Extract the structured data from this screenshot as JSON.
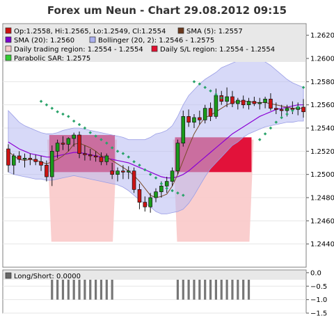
{
  "chart_data": [
    {
      "type": "candlestick",
      "title": "Forex um Neun - Chart 29.08.2012 09:15",
      "ylim": [
        1.242,
        1.263
      ],
      "yticks": [
        1.244,
        1.246,
        1.248,
        1.25,
        1.252,
        1.254,
        1.256,
        1.258,
        1.26,
        1.262
      ],
      "ytick_labels": [
        "1.2440",
        "1.2460",
        "1.2480",
        "1.2500",
        "1.2520",
        "1.2540",
        "1.2560",
        "1.2580",
        "1.2600",
        "1.2620"
      ],
      "grid": true,
      "legend": [
        {
          "label": "Op:1.2558, Hi:1.2565, Lo:1.2549, Cl:1.2554",
          "color": "#cc1010"
        },
        {
          "label": "SMA (5): 1.2557",
          "color": "#6b3a1e"
        },
        {
          "label": "SMA (20): 1.2560",
          "color": "#7a00cc"
        },
        {
          "label": "Bollinger (20, 2): 1.2546 - 1.2575",
          "color": "#aab0ee"
        },
        {
          "label": "Daily trading region: 1.2554 - 1.2554",
          "color": "#f6c8c8"
        },
        {
          "label": "Daily S/L region: 1.2554 - 1.2554",
          "color": "#e01030"
        },
        {
          "label": "Parabolic SAR: 1.2575",
          "color": "#33cc33"
        }
      ],
      "candles": [
        {
          "o": 1.2522,
          "h": 1.2526,
          "l": 1.2502,
          "c": 1.2508
        },
        {
          "o": 1.2508,
          "h": 1.2518,
          "l": 1.25,
          "c": 1.2516
        },
        {
          "o": 1.2516,
          "h": 1.252,
          "l": 1.251,
          "c": 1.2513
        },
        {
          "o": 1.2513,
          "h": 1.2518,
          "l": 1.2506,
          "c": 1.2514
        },
        {
          "o": 1.2514,
          "h": 1.2518,
          "l": 1.2508,
          "c": 1.2513
        },
        {
          "o": 1.2513,
          "h": 1.2517,
          "l": 1.2508,
          "c": 1.2511
        },
        {
          "o": 1.2511,
          "h": 1.2516,
          "l": 1.2503,
          "c": 1.2508
        },
        {
          "o": 1.2508,
          "h": 1.2512,
          "l": 1.2494,
          "c": 1.2498
        },
        {
          "o": 1.2498,
          "h": 1.2525,
          "l": 1.249,
          "c": 1.252
        },
        {
          "o": 1.252,
          "h": 1.253,
          "l": 1.2514,
          "c": 1.2527
        },
        {
          "o": 1.2527,
          "h": 1.2533,
          "l": 1.2521,
          "c": 1.2526
        },
        {
          "o": 1.2526,
          "h": 1.2532,
          "l": 1.252,
          "c": 1.2531
        },
        {
          "o": 1.2531,
          "h": 1.2536,
          "l": 1.2524,
          "c": 1.2534
        },
        {
          "o": 1.2534,
          "h": 1.2537,
          "l": 1.2514,
          "c": 1.2518
        },
        {
          "o": 1.2518,
          "h": 1.2525,
          "l": 1.2512,
          "c": 1.2517
        },
        {
          "o": 1.2517,
          "h": 1.2522,
          "l": 1.2512,
          "c": 1.2516
        },
        {
          "o": 1.2516,
          "h": 1.252,
          "l": 1.2511,
          "c": 1.2515
        },
        {
          "o": 1.2515,
          "h": 1.2519,
          "l": 1.2508,
          "c": 1.2511
        },
        {
          "o": 1.2511,
          "h": 1.2518,
          "l": 1.2508,
          "c": 1.2516
        },
        {
          "o": 1.2503,
          "h": 1.251,
          "l": 1.2496,
          "c": 1.25
        },
        {
          "o": 1.25,
          "h": 1.2506,
          "l": 1.2494,
          "c": 1.2503
        },
        {
          "o": 1.2503,
          "h": 1.2508,
          "l": 1.2496,
          "c": 1.2502
        },
        {
          "o": 1.2502,
          "h": 1.2507,
          "l": 1.2496,
          "c": 1.2503
        },
        {
          "o": 1.2503,
          "h": 1.2506,
          "l": 1.2484,
          "c": 1.2487
        },
        {
          "o": 1.2487,
          "h": 1.2492,
          "l": 1.247,
          "c": 1.2476
        },
        {
          "o": 1.2476,
          "h": 1.2481,
          "l": 1.2468,
          "c": 1.2472
        },
        {
          "o": 1.2472,
          "h": 1.2484,
          "l": 1.2467,
          "c": 1.248
        },
        {
          "o": 1.248,
          "h": 1.2488,
          "l": 1.2476,
          "c": 1.2485
        },
        {
          "o": 1.2485,
          "h": 1.2494,
          "l": 1.248,
          "c": 1.249
        },
        {
          "o": 1.249,
          "h": 1.2498,
          "l": 1.2484,
          "c": 1.2494
        },
        {
          "o": 1.2494,
          "h": 1.2506,
          "l": 1.249,
          "c": 1.2503
        },
        {
          "o": 1.2503,
          "h": 1.253,
          "l": 1.25,
          "c": 1.2527
        },
        {
          "o": 1.2527,
          "h": 1.2555,
          "l": 1.2524,
          "c": 1.255
        },
        {
          "o": 1.255,
          "h": 1.2556,
          "l": 1.2541,
          "c": 1.2545
        },
        {
          "o": 1.2545,
          "h": 1.2552,
          "l": 1.254,
          "c": 1.2549
        },
        {
          "o": 1.2549,
          "h": 1.2555,
          "l": 1.2543,
          "c": 1.2547
        },
        {
          "o": 1.2547,
          "h": 1.256,
          "l": 1.2544,
          "c": 1.2557
        },
        {
          "o": 1.2557,
          "h": 1.2562,
          "l": 1.2546,
          "c": 1.255
        },
        {
          "o": 1.255,
          "h": 1.2574,
          "l": 1.2548,
          "c": 1.2568
        },
        {
          "o": 1.2568,
          "h": 1.2572,
          "l": 1.256,
          "c": 1.2563
        },
        {
          "o": 1.2563,
          "h": 1.2575,
          "l": 1.2558,
          "c": 1.2567
        },
        {
          "o": 1.2567,
          "h": 1.2572,
          "l": 1.2558,
          "c": 1.2561
        },
        {
          "o": 1.2561,
          "h": 1.2566,
          "l": 1.2556,
          "c": 1.2564
        },
        {
          "o": 1.2564,
          "h": 1.2568,
          "l": 1.2557,
          "c": 1.256
        },
        {
          "o": 1.256,
          "h": 1.2566,
          "l": 1.2556,
          "c": 1.2563
        },
        {
          "o": 1.2563,
          "h": 1.2567,
          "l": 1.2559,
          "c": 1.2561
        },
        {
          "o": 1.2561,
          "h": 1.2566,
          "l": 1.2556,
          "c": 1.2562
        },
        {
          "o": 1.2562,
          "h": 1.2567,
          "l": 1.2557,
          "c": 1.2565
        },
        {
          "o": 1.2565,
          "h": 1.257,
          "l": 1.2555,
          "c": 1.2557
        },
        {
          "o": 1.2557,
          "h": 1.2562,
          "l": 1.2552,
          "c": 1.2556
        },
        {
          "o": 1.2556,
          "h": 1.256,
          "l": 1.255,
          "c": 1.2555
        },
        {
          "o": 1.2555,
          "h": 1.256,
          "l": 1.255,
          "c": 1.2557
        },
        {
          "o": 1.2557,
          "h": 1.2563,
          "l": 1.2552,
          "c": 1.2556
        },
        {
          "o": 1.2556,
          "h": 1.2562,
          "l": 1.2551,
          "c": 1.2558
        },
        {
          "o": 1.2558,
          "h": 1.2565,
          "l": 1.2549,
          "c": 1.2554
        }
      ],
      "sma5": [
        1.252,
        1.2516,
        1.2513,
        1.2512,
        1.2513,
        1.2512,
        1.2511,
        1.2509,
        1.2511,
        1.2513,
        1.2516,
        1.252,
        1.2526,
        1.2527,
        1.2525,
        1.2523,
        1.252,
        1.2516,
        1.2515,
        1.2512,
        1.2509,
        1.2506,
        1.2503,
        1.2499,
        1.2494,
        1.2488,
        1.2482,
        1.248,
        1.2481,
        1.2483,
        1.249,
        1.25,
        1.2512,
        1.2524,
        1.2535,
        1.2543,
        1.2549,
        1.2551,
        1.2554,
        1.2557,
        1.256,
        1.2562,
        1.2563,
        1.2563,
        1.2563,
        1.2562,
        1.2562,
        1.2562,
        1.2561,
        1.256,
        1.2559,
        1.2558,
        1.2557,
        1.2557,
        1.2557
      ],
      "sma20": [
        1.2528,
        1.2525,
        1.2522,
        1.252,
        1.2518,
        1.2517,
        1.2516,
        1.2515,
        1.2515,
        1.2516,
        1.2517,
        1.2518,
        1.2519,
        1.2519,
        1.2518,
        1.2517,
        1.2516,
        1.2515,
        1.2514,
        1.2513,
        1.2512,
        1.2511,
        1.251,
        1.2508,
        1.2506,
        1.2504,
        1.2502,
        1.25,
        1.2498,
        1.2497,
        1.2497,
        1.2498,
        1.25,
        1.2503,
        1.2507,
        1.2511,
        1.2515,
        1.2519,
        1.2523,
        1.2527,
        1.2531,
        1.2535,
        1.2538,
        1.2541,
        1.2544,
        1.2547,
        1.255,
        1.2552,
        1.2554,
        1.2556,
        1.2557,
        1.2558,
        1.2559,
        1.256,
        1.256
      ],
      "boll_upper": [
        1.2555,
        1.255,
        1.2545,
        1.2542,
        1.254,
        1.2538,
        1.2536,
        1.2535,
        1.2535,
        1.2536,
        1.2538,
        1.2539,
        1.254,
        1.254,
        1.2539,
        1.2538,
        1.2537,
        1.2536,
        1.2535,
        1.2534,
        1.2533,
        1.2532,
        1.253,
        1.253,
        1.253,
        1.253,
        1.2532,
        1.2535,
        1.2536,
        1.2538,
        1.2542,
        1.255,
        1.256,
        1.2568,
        1.2573,
        1.2578,
        1.2582,
        1.2585,
        1.2588,
        1.2592,
        1.2594,
        1.2596,
        1.2598,
        1.2599,
        1.26,
        1.26,
        1.2599,
        1.2597,
        1.2594,
        1.259,
        1.2586,
        1.2582,
        1.2579,
        1.2577,
        1.2575
      ],
      "boll_lower": [
        1.2502,
        1.25,
        1.2499,
        1.2498,
        1.2497,
        1.2496,
        1.2496,
        1.2495,
        1.2495,
        1.2496,
        1.2497,
        1.2498,
        1.2499,
        1.2498,
        1.2497,
        1.2496,
        1.2495,
        1.2494,
        1.2493,
        1.2492,
        1.2491,
        1.2489,
        1.2486,
        1.2482,
        1.2478,
        1.2475,
        1.2472,
        1.2468,
        1.2466,
        1.2466,
        1.2467,
        1.2468,
        1.247,
        1.2475,
        1.2482,
        1.249,
        1.2498,
        1.2505,
        1.251,
        1.2515,
        1.252,
        1.2525,
        1.2528,
        1.2532,
        1.2535,
        1.2537,
        1.2539,
        1.2541,
        1.2542,
        1.2543,
        1.2544,
        1.2545,
        1.2545,
        1.2546,
        1.2546
      ],
      "sar": [
        null,
        null,
        null,
        null,
        null,
        null,
        1.2563,
        1.256,
        1.2557,
        1.2554,
        1.2552,
        1.255,
        1.2546,
        1.2543,
        1.254,
        1.2536,
        1.2533,
        1.253,
        1.2527,
        1.2523,
        1.252,
        1.2518,
        1.2515,
        1.2511,
        1.2508,
        1.2504,
        1.25,
        1.2497,
        1.2492,
        1.2488,
        1.2486,
        1.2484,
        1.2482,
        null,
        1.258,
        1.2578,
        1.2575,
        1.2572,
        1.2569,
        1.2566,
        null,
        null,
        null,
        null,
        null,
        null,
        1.253,
        1.2535,
        1.254,
        1.2545,
        1.2549,
        1.2552,
        1.2555,
        1.2558,
        1.2575
      ],
      "regions": [
        {
          "from": 8,
          "to": 19,
          "trading_top": 1.253,
          "sl_top": 1.2534,
          "sl_bottom": 1.2502,
          "trading_bottom": 1.2442
        },
        {
          "from": 31,
          "to": 44,
          "trading_top": 1.253,
          "sl_top": 1.2532,
          "sl_bottom": 1.2502,
          "trading_bottom": 1.2442
        }
      ]
    },
    {
      "type": "bar",
      "legend": [
        {
          "label": "Long/Short: 0.0000",
          "color": "#666666"
        }
      ],
      "ylim": [
        -1.5,
        0.1
      ],
      "yticks": [
        0.0,
        -0.5,
        -1.0,
        -1.5
      ],
      "ytick_labels": [
        "0.0",
        "−0.5",
        "−1.0",
        "−1.5"
      ],
      "values": [
        0,
        0,
        0,
        0,
        0,
        0,
        0,
        0,
        -1,
        -1,
        -1,
        -1,
        -1,
        -1,
        -1,
        -1,
        -1,
        -1,
        -1,
        -1,
        0,
        0,
        0,
        0,
        0,
        0,
        0,
        0,
        0,
        0,
        0,
        -1,
        -1,
        -1,
        -1,
        -1,
        -1,
        -1,
        -1,
        -1,
        -1,
        -1,
        -1,
        -1,
        -1,
        0,
        0,
        0,
        0,
        0,
        0,
        0,
        0,
        0,
        0
      ]
    }
  ]
}
